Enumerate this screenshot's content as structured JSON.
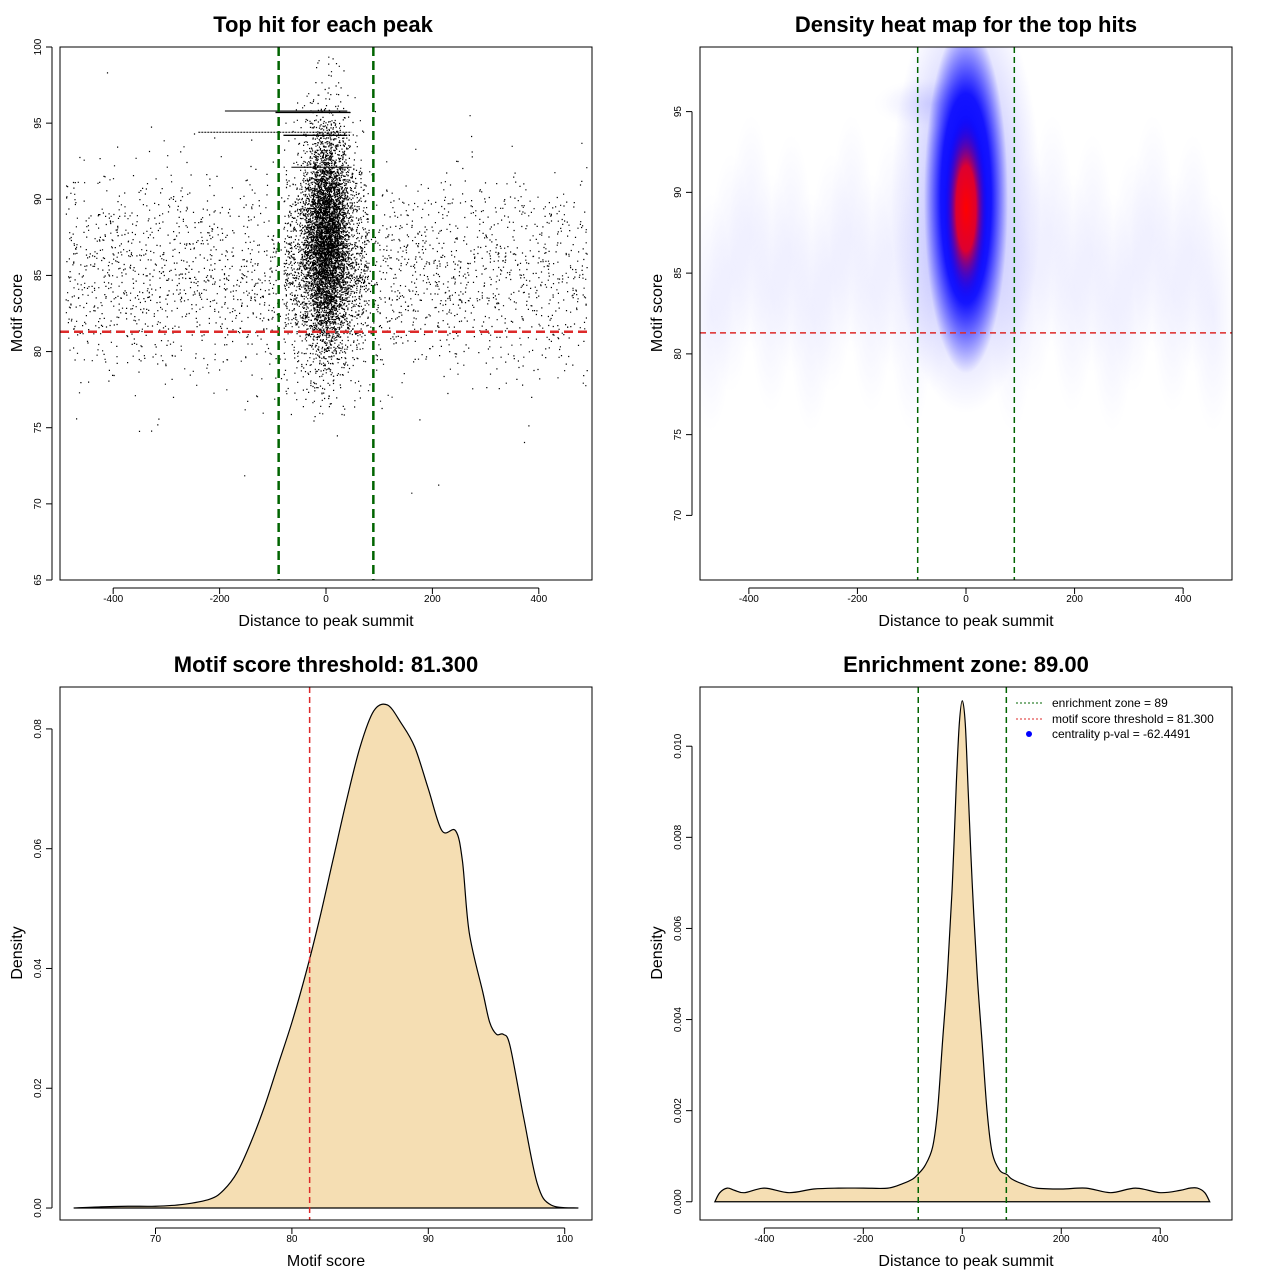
{
  "colors": {
    "points": "#000000",
    "zone_line": "#006400",
    "threshold_line": "#dd2a2a",
    "fill": "#f5deb3",
    "heat_low": "#ffffff",
    "heat_mid": "#0000ff",
    "heat_high": "#ff0000"
  },
  "chart_data": [
    {
      "type": "scatter",
      "title": "Top hit for each peak",
      "xlabel": "Distance to peak summit",
      "ylabel": "Motif score",
      "xlim": [
        -500,
        500
      ],
      "ylim": [
        65,
        100
      ],
      "xticks": [
        -400,
        -200,
        0,
        200,
        400
      ],
      "yticks": [
        65,
        70,
        75,
        80,
        85,
        90,
        95,
        100
      ],
      "threshold_y": 81.3,
      "zone_x": [
        -89,
        89
      ],
      "bands": [
        95.8,
        95.7,
        94.4,
        94.2,
        92.1
      ],
      "grid": false,
      "legend": "none"
    },
    {
      "type": "heatmap",
      "title": "Density heat map for the top hits",
      "xlabel": "Distance to peak summit",
      "ylabel": "Motif score",
      "xlim": [
        -490,
        490
      ],
      "ylim": [
        66,
        99
      ],
      "xticks": [
        -400,
        -200,
        0,
        200,
        400
      ],
      "yticks": [
        70,
        75,
        80,
        85,
        90,
        95
      ],
      "threshold_y": 81.3,
      "zone_x": [
        -89,
        89
      ],
      "hotspot": {
        "x": 0,
        "y": 89
      },
      "grid": false,
      "legend": "none"
    },
    {
      "type": "area",
      "title": "Motif score threshold: 81.300",
      "xlabel": "Motif score",
      "ylabel": "Density",
      "xlim": [
        63,
        102
      ],
      "ylim": [
        -0.002,
        0.087
      ],
      "xticks": [
        70,
        80,
        90,
        100
      ],
      "yticks": [
        0.0,
        0.02,
        0.04,
        0.06,
        0.08
      ],
      "ytick_labels": [
        "0.00",
        "0.02",
        "0.04",
        "0.06",
        "0.08"
      ],
      "threshold_x": 81.3,
      "x": [
        64,
        66,
        68,
        70,
        72,
        74,
        75,
        76,
        77,
        78,
        79,
        80,
        81,
        82,
        83,
        84,
        85,
        86,
        87,
        88,
        89,
        90,
        91,
        92,
        92.5,
        93,
        94,
        94.5,
        95,
        95.5,
        96,
        97,
        98,
        99,
        101
      ],
      "y": [
        0.0,
        0.0002,
        0.0003,
        0.0003,
        0.0006,
        0.0015,
        0.003,
        0.006,
        0.011,
        0.017,
        0.024,
        0.031,
        0.039,
        0.048,
        0.058,
        0.068,
        0.077,
        0.083,
        0.084,
        0.081,
        0.077,
        0.07,
        0.063,
        0.063,
        0.058,
        0.046,
        0.036,
        0.031,
        0.029,
        0.029,
        0.027,
        0.015,
        0.004,
        0.0005,
        0.0
      ],
      "grid": false,
      "legend": "none"
    },
    {
      "type": "area",
      "title": "Enrichment zone: 89.00",
      "xlabel": "Distance to peak summit",
      "ylabel": "Density",
      "xlim": [
        -530,
        545
      ],
      "ylim": [
        -0.0004,
        0.0113
      ],
      "xticks": [
        -400,
        -200,
        0,
        200,
        400
      ],
      "yticks": [
        0.0,
        0.002,
        0.004,
        0.006,
        0.008,
        0.01
      ],
      "ytick_labels": [
        "0.000",
        "0.002",
        "0.004",
        "0.006",
        "0.008",
        "0.010"
      ],
      "zone_x": [
        -89,
        89
      ],
      "x": [
        -500,
        -490,
        -475,
        -460,
        -440,
        -400,
        -350,
        -300,
        -250,
        -200,
        -150,
        -120,
        -100,
        -90,
        -75,
        -60,
        -50,
        -40,
        -30,
        -20,
        -12,
        -6,
        0,
        6,
        12,
        20,
        30,
        40,
        50,
        60,
        75,
        90,
        100,
        120,
        150,
        200,
        250,
        300,
        350,
        400,
        440,
        460,
        475,
        490,
        500
      ],
      "y": [
        0.0,
        0.0002,
        0.0003,
        0.00025,
        0.0002,
        0.0003,
        0.0002,
        0.00028,
        0.0003,
        0.0003,
        0.0003,
        0.0004,
        0.0005,
        0.0006,
        0.0008,
        0.0012,
        0.002,
        0.0035,
        0.005,
        0.007,
        0.0092,
        0.0105,
        0.011,
        0.0105,
        0.009,
        0.007,
        0.005,
        0.0035,
        0.002,
        0.0011,
        0.0007,
        0.0006,
        0.0005,
        0.0004,
        0.0003,
        0.00028,
        0.0003,
        0.0002,
        0.0003,
        0.0002,
        0.00025,
        0.0003,
        0.0003,
        0.0002,
        0.0
      ],
      "legend": "top-right",
      "legend_entries": [
        {
          "label": "enrichment zone = 89",
          "style": "dotted-line",
          "color": "#006400"
        },
        {
          "label": "motif score threshold = 81.300",
          "style": "dotted-line",
          "color": "#dd2a2a"
        },
        {
          "label": "centrality p-val = -62.4491",
          "style": "point",
          "color": "#0000ff"
        }
      ],
      "grid": false
    }
  ]
}
